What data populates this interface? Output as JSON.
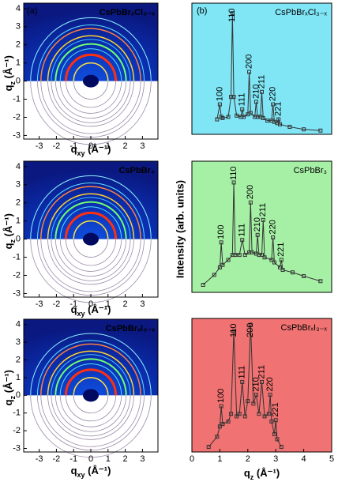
{
  "chart_data": [
    {
      "type": "image",
      "panel": "(a)",
      "label": "CsPbBrₓCl₃₋ₓ",
      "x_label": [
        "q",
        "xy",
        " (Å⁻¹)"
      ],
      "y_label": [
        "q",
        "z",
        " (Å⁻¹)"
      ],
      "xlim": [
        -3.9,
        3.9
      ],
      "ylim": [
        -3.2,
        4.3
      ],
      "xticks": [
        -3,
        -2,
        -1,
        0,
        1,
        2,
        3
      ],
      "yticks": [
        -3,
        -2,
        -1,
        0,
        1,
        2,
        3,
        4
      ]
    },
    {
      "type": "image",
      "label": "CsPbBr₃",
      "x_label": [
        "q",
        "xy",
        " (Å⁻¹)"
      ],
      "y_label": [
        "q",
        "z",
        " (Å⁻¹)"
      ],
      "xlim": [
        -3.9,
        3.9
      ],
      "ylim": [
        -3.2,
        4.3
      ],
      "xticks": [
        -3,
        -2,
        -1,
        0,
        1,
        2,
        3
      ],
      "yticks": [
        -3,
        -2,
        -1,
        0,
        1,
        2,
        3,
        4
      ]
    },
    {
      "type": "image",
      "label": "CsPbBrₓI₃₋ₓ",
      "x_label": [
        "q",
        "xy",
        " (Å⁻¹)"
      ],
      "y_label": [
        "q",
        "z",
        " (Å⁻¹)"
      ],
      "xlim": [
        -3.9,
        3.9
      ],
      "ylim": [
        -3.2,
        4.3
      ],
      "xticks": [
        -3,
        -2,
        -1,
        0,
        1,
        2,
        3
      ],
      "yticks": [
        -3,
        -2,
        -1,
        0,
        1,
        2,
        3,
        4
      ]
    },
    {
      "type": "line",
      "panel": "(b)",
      "label": "CsPbBrₓCl₃₋ₓ",
      "background": "#80e6f6",
      "xlim": [
        0,
        5
      ],
      "ylim": [
        0,
        100
      ],
      "series": [
        {
          "color": "#333333",
          "x": [
            0.9,
            1.0,
            1.05,
            1.1,
            1.3,
            1.4,
            1.45,
            1.5,
            1.6,
            1.75,
            1.8,
            1.85,
            2.0,
            2.05,
            2.1,
            2.25,
            2.3,
            2.35,
            2.45,
            2.5,
            2.55,
            2.7,
            2.85,
            2.9,
            2.95,
            3.05,
            3.1,
            3.15,
            3.5,
            4.0,
            4.6
          ],
          "values": [
            12,
            24,
            14,
            13,
            14,
            30,
            97,
            30,
            15,
            14,
            20,
            14,
            16,
            50,
            17,
            14,
            26,
            14,
            14,
            34,
            13,
            11,
            11,
            24,
            10,
            9,
            12,
            8,
            6,
            4,
            3
          ]
        }
      ],
      "annotations": [
        {
          "text": "100",
          "x": 1.0
        },
        {
          "text": "110",
          "x": 1.45
        },
        {
          "text": "111",
          "x": 1.8
        },
        {
          "text": "200",
          "x": 2.05
        },
        {
          "text": "210",
          "x": 2.3
        },
        {
          "text": "211",
          "x": 2.5
        },
        {
          "text": "220",
          "x": 2.9
        },
        {
          "text": "221",
          "x": 3.1
        }
      ]
    },
    {
      "type": "line",
      "label": "CsPbBr₃",
      "y_label": "Intensity (arb. units)",
      "background": "#a6f0a6",
      "xlim": [
        0,
        5
      ],
      "ylim": [
        0,
        100
      ],
      "series": [
        {
          "color": "#333333",
          "x": [
            0.4,
            0.8,
            1.0,
            1.05,
            1.1,
            1.3,
            1.45,
            1.5,
            1.55,
            1.7,
            1.8,
            1.9,
            2.05,
            2.1,
            2.15,
            2.3,
            2.35,
            2.4,
            2.5,
            2.55,
            2.6,
            2.85,
            2.9,
            2.95,
            3.15,
            3.2,
            3.25,
            3.6,
            4.0,
            4.6
          ],
          "values": [
            6,
            14,
            20,
            40,
            22,
            26,
            30,
            88,
            30,
            30,
            42,
            30,
            32,
            72,
            32,
            31,
            46,
            30,
            30,
            58,
            28,
            26,
            44,
            24,
            20,
            26,
            18,
            16,
            13,
            9
          ]
        }
      ],
      "annotations": [
        {
          "text": "100",
          "x": 1.05
        },
        {
          "text": "110",
          "x": 1.5
        },
        {
          "text": "111",
          "x": 1.8
        },
        {
          "text": "200",
          "x": 2.1
        },
        {
          "text": "210",
          "x": 2.35
        },
        {
          "text": "211",
          "x": 2.55
        },
        {
          "text": "220",
          "x": 2.9
        },
        {
          "text": "221",
          "x": 3.2
        }
      ]
    },
    {
      "type": "line",
      "label": "CsPbBrₓI₃₋ₓ",
      "background": "#f07272",
      "xlim": [
        0,
        5
      ],
      "ylim": [
        0,
        100
      ],
      "xticks": [
        0,
        1,
        2,
        3,
        4,
        5
      ],
      "x_label": [
        "q",
        "z",
        " (Å⁻¹)"
      ],
      "series": [
        {
          "color": "#333333",
          "x": [
            0.6,
            0.9,
            1.0,
            1.05,
            1.1,
            1.3,
            1.4,
            1.5,
            1.6,
            1.7,
            1.8,
            1.9,
            2.0,
            2.1,
            2.2,
            2.3,
            2.4,
            2.5,
            2.6,
            2.75,
            2.8,
            2.85,
            2.95,
            3.0,
            3.05,
            3.2
          ],
          "values": [
            4,
            12,
            20,
            36,
            22,
            24,
            30,
            95,
            28,
            30,
            55,
            28,
            40,
            100,
            38,
            45,
            30,
            55,
            28,
            30,
            45,
            24,
            14,
            25,
            10,
            4
          ]
        }
      ],
      "annotations": [
        {
          "text": "100",
          "x": 1.05
        },
        {
          "text": "110",
          "x": 1.5
        },
        {
          "text": "111",
          "x": 1.8
        },
        {
          "text": "200",
          "x": 2.1
        },
        {
          "text": "210",
          "x": 2.3
        },
        {
          "text": "211",
          "x": 2.5
        },
        {
          "text": "220",
          "x": 2.8
        },
        {
          "text": "221",
          "x": 3.0
        }
      ]
    }
  ]
}
